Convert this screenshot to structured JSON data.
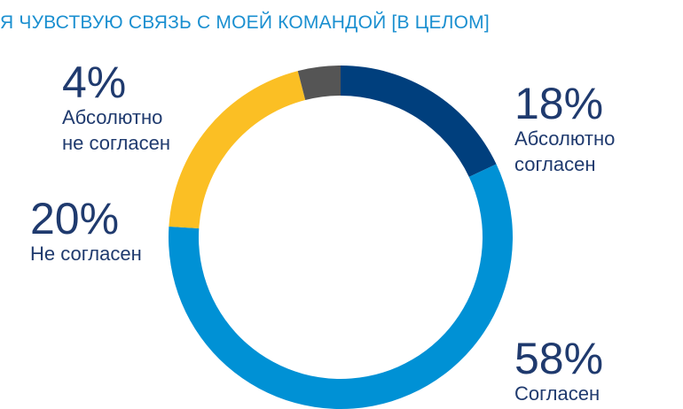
{
  "chart_data": {
    "type": "pie",
    "variant": "donut",
    "title": "Я ЧУВСТВУЮ СВЯЗЬ С МОЕЙ КОМАНДОЙ [В ЦЕЛОМ]",
    "slices": [
      {
        "label": "Абсолютно согласен",
        "label_lines": [
          "Абсолютно",
          "согласен"
        ],
        "value": 18,
        "value_text": "18%",
        "color": "#003f7d"
      },
      {
        "label": "Согласен",
        "label_lines": [
          "Согласен"
        ],
        "value": 58,
        "value_text": "58%",
        "color": "#0091d5"
      },
      {
        "label": "Не согласен",
        "label_lines": [
          "Не согласен"
        ],
        "value": 20,
        "value_text": "20%",
        "color": "#fbbf24"
      },
      {
        "label": "Абсолютно не согласен",
        "label_lines": [
          "Абсолютно",
          "не согласен"
        ],
        "value": 4,
        "value_text": "4%",
        "color": "#555555"
      }
    ],
    "legend": "none"
  }
}
